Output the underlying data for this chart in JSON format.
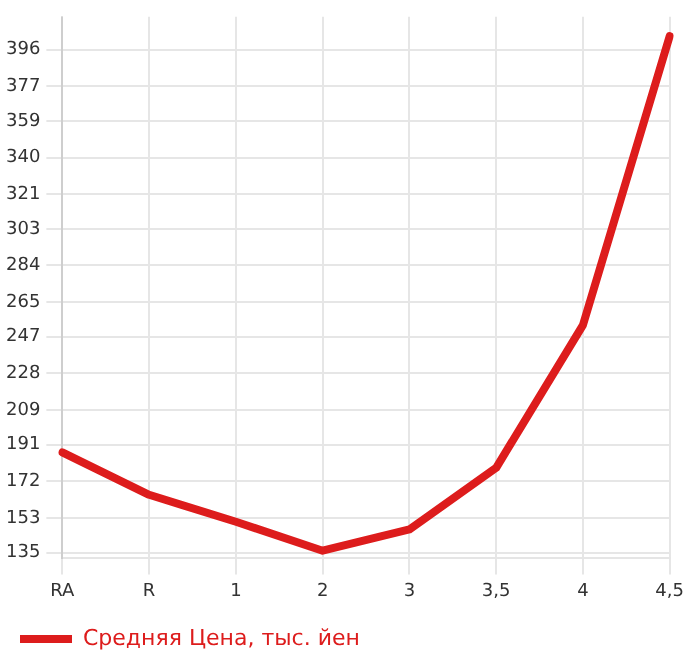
{
  "chart_data": {
    "type": "line",
    "categories": [
      "RA",
      "R",
      "1",
      "2",
      "3",
      "3,5",
      "4",
      "4,5"
    ],
    "series": [
      {
        "name": "Средняя Цена, тыс. йен",
        "color": "#dd1c1c",
        "values": [
          187,
          165,
          151,
          136,
          147,
          179,
          253,
          403
        ]
      }
    ],
    "ylim": [
      132,
      413
    ],
    "yticks": [
      135,
      153,
      172,
      191,
      209,
      228,
      247,
      265,
      284,
      303,
      321,
      340,
      359,
      377,
      396
    ],
    "grid": true,
    "legend": "bottom",
    "marker": "none",
    "line_style": "solid"
  }
}
